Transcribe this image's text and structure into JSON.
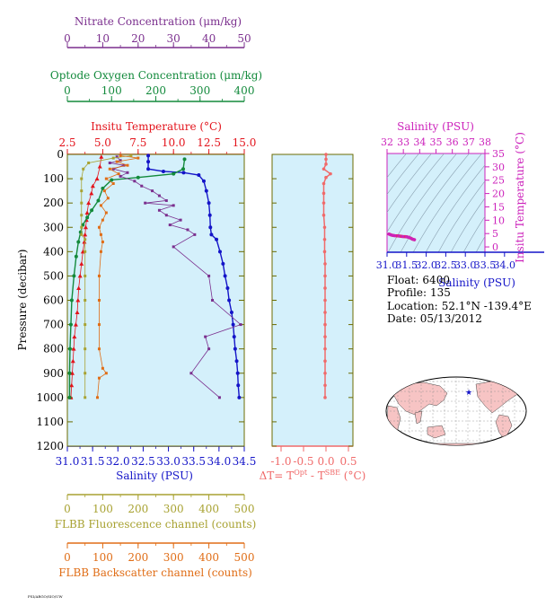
{
  "chart_data": {
    "type": "scatter",
    "figure_caption": "FSI/ARGO/SIO/UW",
    "profile_panel": {
      "y_label": "Pressure (decibar)",
      "y_ticks": [
        0,
        100,
        200,
        300,
        400,
        500,
        600,
        700,
        800,
        900,
        1000,
        1100,
        1200
      ],
      "ylim": [
        1200,
        0
      ],
      "axes": [
        {
          "key": "nitrate",
          "label": "Nitrate Concentration (μm/kg)",
          "ticks": [
            "0",
            "10",
            "20",
            "30",
            "40",
            "50"
          ],
          "range": [
            0,
            50
          ],
          "color": "#7b2f8e"
        },
        {
          "key": "oxygen",
          "label": "Optode Oxygen Concentration (μm/kg)",
          "ticks": [
            "0",
            "100",
            "200",
            "300",
            "400"
          ],
          "range": [
            0,
            400
          ],
          "color": "#138a3c"
        },
        {
          "key": "temperature",
          "label": "Insitu Temperature (°C)",
          "ticks": [
            "2.5",
            "5.0",
            "7.5",
            "10.0",
            "12.5",
            "15.0"
          ],
          "range": [
            2.5,
            15.0
          ],
          "color": "#e3131b"
        },
        {
          "key": "salinity",
          "label": "Salinity (PSU)",
          "ticks": [
            "31.0",
            "31.5",
            "32.0",
            "32.5",
            "33.0",
            "33.5",
            "34.0",
            "34.5"
          ],
          "range": [
            31.0,
            34.5
          ],
          "color": "#1414c8"
        },
        {
          "key": "fluorescence",
          "label": "FLBB Fluorescence channel (counts)",
          "ticks": [
            "0",
            "100",
            "200",
            "300",
            "400",
            "500"
          ],
          "range": [
            0,
            500
          ],
          "color": "#a8a232"
        },
        {
          "key": "backscatter",
          "label": "FLBB Backscatter channel (counts)",
          "ticks": [
            "0",
            "100",
            "200",
            "300",
            "400",
            "500"
          ],
          "range": [
            0,
            500
          ],
          "color": "#e06d16"
        }
      ],
      "series": [
        {
          "key": "salinity",
          "points": [
            [
              32.6,
              5
            ],
            [
              32.6,
              30
            ],
            [
              32.6,
              60
            ],
            [
              32.9,
              70
            ],
            [
              33.3,
              75
            ],
            [
              33.6,
              85
            ],
            [
              33.7,
              110
            ],
            [
              33.75,
              150
            ],
            [
              33.8,
              200
            ],
            [
              33.82,
              250
            ],
            [
              33.83,
              300
            ],
            [
              33.85,
              330
            ],
            [
              33.95,
              350
            ],
            [
              34.02,
              400
            ],
            [
              34.08,
              450
            ],
            [
              34.12,
              500
            ],
            [
              34.17,
              550
            ],
            [
              34.2,
              600
            ],
            [
              34.25,
              650
            ],
            [
              34.28,
              700
            ],
            [
              34.3,
              750
            ],
            [
              34.32,
              800
            ],
            [
              34.35,
              850
            ],
            [
              34.37,
              900
            ],
            [
              34.38,
              950
            ],
            [
              34.4,
              1000
            ]
          ]
        },
        {
          "key": "temperature",
          "points": [
            [
              4.9,
              10
            ],
            [
              4.8,
              50
            ],
            [
              4.6,
              100
            ],
            [
              4.3,
              130
            ],
            [
              4.2,
              160
            ],
            [
              4.0,
              200
            ],
            [
              3.9,
              240
            ],
            [
              3.85,
              270
            ],
            [
              3.8,
              300
            ],
            [
              3.75,
              330
            ],
            [
              3.7,
              360
            ],
            [
              3.6,
              400
            ],
            [
              3.5,
              450
            ],
            [
              3.4,
              500
            ],
            [
              3.3,
              550
            ],
            [
              3.25,
              600
            ],
            [
              3.2,
              650
            ],
            [
              3.1,
              700
            ],
            [
              3.0,
              750
            ],
            [
              2.95,
              800
            ],
            [
              2.9,
              850
            ],
            [
              2.85,
              900
            ],
            [
              2.8,
              950
            ],
            [
              2.75,
              1000
            ]
          ]
        },
        {
          "key": "oxygen",
          "points": [
            [
              265,
              20
            ],
            [
              262,
              60
            ],
            [
              240,
              80
            ],
            [
              160,
              95
            ],
            [
              100,
              105
            ],
            [
              80,
              140
            ],
            [
              70,
              190
            ],
            [
              55,
              230
            ],
            [
              45,
              260
            ],
            [
              35,
              290
            ],
            [
              30,
              320
            ],
            [
              25,
              360
            ],
            [
              20,
              420
            ],
            [
              15,
              500
            ],
            [
              10,
              600
            ],
            [
              8,
              700
            ],
            [
              6,
              800
            ],
            [
              5,
              900
            ],
            [
              5,
              1000
            ]
          ]
        },
        {
          "key": "nitrate",
          "points": [
            [
              14,
              10
            ],
            [
              15,
              25
            ],
            [
              12,
              35
            ],
            [
              16,
              45
            ],
            [
              13,
              60
            ],
            [
              17,
              75
            ],
            [
              15,
              90
            ],
            [
              19,
              110
            ],
            [
              21,
              130
            ],
            [
              24,
              150
            ],
            [
              26,
              170
            ],
            [
              28,
              190
            ],
            [
              22,
              200
            ],
            [
              30,
              210
            ],
            [
              26,
              230
            ],
            [
              28,
              250
            ],
            [
              32,
              270
            ],
            [
              29,
              290
            ],
            [
              34,
              310
            ],
            [
              36,
              330
            ],
            [
              30,
              380
            ],
            [
              40,
              500
            ],
            [
              41,
              600
            ],
            [
              49,
              700
            ],
            [
              39,
              750
            ],
            [
              40,
              800
            ],
            [
              35,
              900
            ],
            [
              43,
              1000
            ]
          ]
        },
        {
          "key": "fluorescence",
          "points": [
            [
              180,
              5
            ],
            [
              130,
              15
            ],
            [
              60,
              35
            ],
            [
              45,
              60
            ],
            [
              40,
              100
            ],
            [
              40,
              150
            ],
            [
              40,
              200
            ],
            [
              40,
              250
            ],
            [
              40,
              300
            ],
            [
              40,
              330
            ],
            [
              50,
              350
            ],
            [
              50,
              400
            ],
            [
              50,
              500
            ],
            [
              50,
              600
            ],
            [
              50,
              700
            ],
            [
              50,
              800
            ],
            [
              50,
              900
            ],
            [
              50,
              1000
            ]
          ]
        },
        {
          "key": "backscatter",
          "points": [
            [
              150,
              5
            ],
            [
              200,
              15
            ],
            [
              140,
              30
            ],
            [
              170,
              45
            ],
            [
              120,
              60
            ],
            [
              145,
              80
            ],
            [
              110,
              100
            ],
            [
              130,
              120
            ],
            [
              105,
              150
            ],
            [
              115,
              180
            ],
            [
              95,
              210
            ],
            [
              110,
              240
            ],
            [
              100,
              270
            ],
            [
              90,
              300
            ],
            [
              95,
              330
            ],
            [
              100,
              360
            ],
            [
              95,
              400
            ],
            [
              90,
              500
            ],
            [
              90,
              600
            ],
            [
              90,
              700
            ],
            [
              90,
              800
            ],
            [
              100,
              880
            ],
            [
              110,
              900
            ],
            [
              90,
              920
            ],
            [
              85,
              1000
            ]
          ]
        }
      ]
    },
    "delta_panel": {
      "x_label": "ΔT= T",
      "x_label_sup1": "Opt",
      "x_label_mid": " - T",
      "x_label_sup2": "SBE",
      "x_label_end": " (°C)",
      "x_ticks": [
        "-1.0",
        "-0.5",
        "0.0",
        "0.5"
      ],
      "xlim": [
        -1.2,
        0.6
      ],
      "ylim": [
        1200,
        0
      ],
      "points": [
        [
          0.0,
          0
        ],
        [
          0.0,
          20
        ],
        [
          0.0,
          40
        ],
        [
          -0.05,
          60
        ],
        [
          0.1,
          80
        ],
        [
          0.0,
          95
        ],
        [
          -0.05,
          120
        ],
        [
          -0.05,
          160
        ],
        [
          -0.05,
          200
        ],
        [
          -0.05,
          250
        ],
        [
          -0.03,
          300
        ],
        [
          -0.03,
          350
        ],
        [
          -0.03,
          400
        ],
        [
          -0.02,
          450
        ],
        [
          -0.02,
          500
        ],
        [
          -0.02,
          550
        ],
        [
          -0.02,
          600
        ],
        [
          -0.02,
          650
        ],
        [
          -0.02,
          700
        ],
        [
          -0.02,
          750
        ],
        [
          -0.02,
          800
        ],
        [
          -0.02,
          850
        ],
        [
          -0.02,
          900
        ],
        [
          -0.02,
          950
        ],
        [
          -0.02,
          1000
        ]
      ]
    },
    "ts_panel": {
      "top_label": "Salinity (PSU)",
      "top_ticks": [
        "32",
        "33",
        "34",
        "35",
        "36",
        "37",
        "38"
      ],
      "bottom_label": "Salinity (PSU)",
      "bottom_ticks": [
        "31.0",
        "31.5",
        "32.0",
        "32.5",
        "33.0",
        "33.5",
        "34.0"
      ],
      "right_label": "Insitu Temperature (°C)",
      "right_ticks": [
        "0",
        "5",
        "10",
        "15",
        "20",
        "25",
        "30",
        "35"
      ],
      "xlim": [
        31.0,
        33.5
      ],
      "ylim": [
        -2,
        35
      ],
      "points": [
        [
          31.05,
          4.8
        ],
        [
          31.1,
          4.5
        ],
        [
          31.15,
          4.3
        ],
        [
          31.2,
          4.2
        ],
        [
          31.3,
          4.1
        ],
        [
          31.4,
          3.9
        ],
        [
          31.5,
          3.8
        ],
        [
          31.55,
          3.6
        ],
        [
          31.6,
          3.3
        ],
        [
          31.65,
          2.9
        ],
        [
          31.7,
          2.7
        ]
      ]
    },
    "float_info": [
      {
        "label": "Float:",
        "value": "6400"
      },
      {
        "label": "Profile:",
        "value": "135"
      },
      {
        "label": "Location:",
        "value": "52.1°N  -139.4°E"
      },
      {
        "label": "Date:",
        "value": "05/13/2012"
      }
    ],
    "colors": {
      "plot_background": "#d4f0fb",
      "map_land": "#f7c4c4",
      "map_ocean": "#ffffff",
      "ts_axis": "#cc22bb",
      "delta_axis": "#f06a6a",
      "frame": "#6b6b00",
      "float_marker": "#1414c8"
    }
  }
}
